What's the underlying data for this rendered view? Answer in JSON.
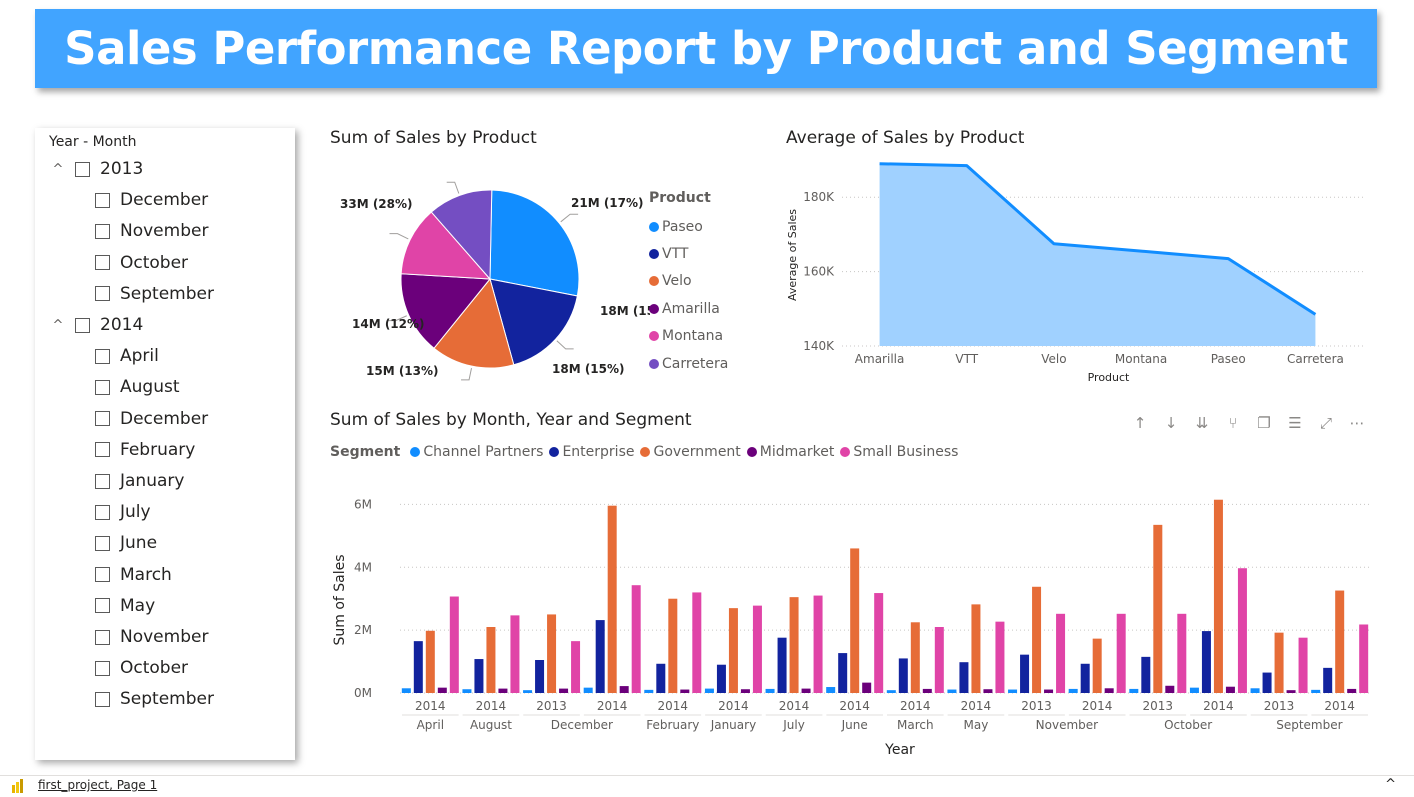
{
  "banner": {
    "title": "Sales Performance Report by Product and Segment"
  },
  "slicer": {
    "title": "Year - Month",
    "groups": [
      {
        "year": "2013",
        "months": [
          "December",
          "November",
          "October",
          "September"
        ]
      },
      {
        "year": "2014",
        "months": [
          "April",
          "August",
          "December",
          "February",
          "January",
          "July",
          "June",
          "March",
          "May",
          "November",
          "October",
          "September"
        ]
      }
    ]
  },
  "colors": {
    "Paseo": "#118dff",
    "VTT": "#12239e",
    "Velo": "#e66c37",
    "Amarilla": "#6b007b",
    "Montana": "#e044a7",
    "Carretera": "#744ec2",
    "Channel Partners": "#118dff",
    "Enterprise": "#12239e",
    "Government": "#e66c37",
    "Midmarket": "#6b007b",
    "Small Business": "#e044a7"
  },
  "chart_data": [
    {
      "type": "pie",
      "title": "Sum of Sales by Product",
      "legend_title": "Product",
      "legend_position": "right",
      "slices": [
        {
          "name": "Paseo",
          "value": 33,
          "label": "33M (28%)"
        },
        {
          "name": "VTT",
          "value": 21,
          "label": "21M (17%)"
        },
        {
          "name": "Velo",
          "value": 18,
          "label": "18M (15%)"
        },
        {
          "name": "Amarilla",
          "value": 18,
          "label": "18M (15%)"
        },
        {
          "name": "Montana",
          "value": 15,
          "label": "15M (13%)"
        },
        {
          "name": "Carretera",
          "value": 14,
          "label": "14M (12%)"
        }
      ]
    },
    {
      "type": "area",
      "title": "Average of Sales by Product",
      "xlabel": "Product",
      "ylabel": "Average of Sales",
      "categories": [
        "Amarilla",
        "VTT",
        "Velo",
        "Montana",
        "Paseo",
        "Carretera"
      ],
      "values": [
        189000,
        188500,
        167500,
        165500,
        163500,
        148500
      ],
      "ylim": [
        140000,
        190000
      ],
      "yticks": [
        140000,
        160000,
        180000
      ],
      "ytick_labels": [
        "140K",
        "160K",
        "180K"
      ],
      "grid": true
    },
    {
      "type": "bar",
      "title": "Sum of Sales by Month, Year and Segment",
      "xlabel": "Year",
      "ylabel": "Sum of Sales",
      "legend_title": "Segment",
      "legend_position": "top-left",
      "ylim": [
        0,
        6.3
      ],
      "yticks": [
        0,
        2,
        4,
        6
      ],
      "ytick_labels": [
        "0M",
        "2M",
        "4M",
        "6M"
      ],
      "grid": true,
      "years": [
        "2014",
        "2014",
        "2013",
        "2014",
        "2014",
        "2014",
        "2014",
        "2014",
        "2014",
        "2014",
        "2013",
        "2014",
        "2013",
        "2014",
        "2013",
        "2014"
      ],
      "month_groups": [
        {
          "label": "April",
          "span": 1
        },
        {
          "label": "August",
          "span": 1
        },
        {
          "label": "December",
          "span": 2
        },
        {
          "label": "February",
          "span": 1
        },
        {
          "label": "January",
          "span": 1
        },
        {
          "label": "July",
          "span": 1
        },
        {
          "label": "June",
          "span": 1
        },
        {
          "label": "March",
          "span": 1
        },
        {
          "label": "May",
          "span": 1
        },
        {
          "label": "November",
          "span": 2
        },
        {
          "label": "October",
          "span": 2
        },
        {
          "label": "September",
          "span": 2
        }
      ],
      "series": [
        {
          "name": "Channel Partners",
          "values": [
            0.15,
            0.12,
            0.09,
            0.17,
            0.1,
            0.14,
            0.13,
            0.19,
            0.09,
            0.11,
            0.11,
            0.13,
            0.13,
            0.17,
            0.15,
            0.1
          ]
        },
        {
          "name": "Enterprise",
          "values": [
            1.65,
            1.08,
            1.05,
            2.32,
            0.93,
            0.9,
            1.76,
            1.27,
            1.1,
            0.98,
            1.22,
            0.93,
            1.15,
            1.97,
            0.65,
            0.8
          ]
        },
        {
          "name": "Government",
          "values": [
            1.98,
            2.1,
            2.5,
            5.96,
            3.0,
            2.7,
            3.05,
            4.6,
            2.25,
            2.82,
            3.38,
            1.73,
            5.35,
            6.15,
            1.92,
            3.26
          ]
        },
        {
          "name": "Midmarket",
          "values": [
            0.17,
            0.14,
            0.14,
            0.22,
            0.11,
            0.12,
            0.14,
            0.33,
            0.13,
            0.12,
            0.11,
            0.15,
            0.23,
            0.2,
            0.09,
            0.13
          ]
        },
        {
          "name": "Small Business",
          "values": [
            3.07,
            2.47,
            1.65,
            3.43,
            3.2,
            2.78,
            3.1,
            3.18,
            2.1,
            2.27,
            2.52,
            2.52,
            2.52,
            3.97,
            1.76,
            2.18
          ]
        }
      ]
    }
  ],
  "footer": {
    "file": "first_project, Page 1"
  }
}
